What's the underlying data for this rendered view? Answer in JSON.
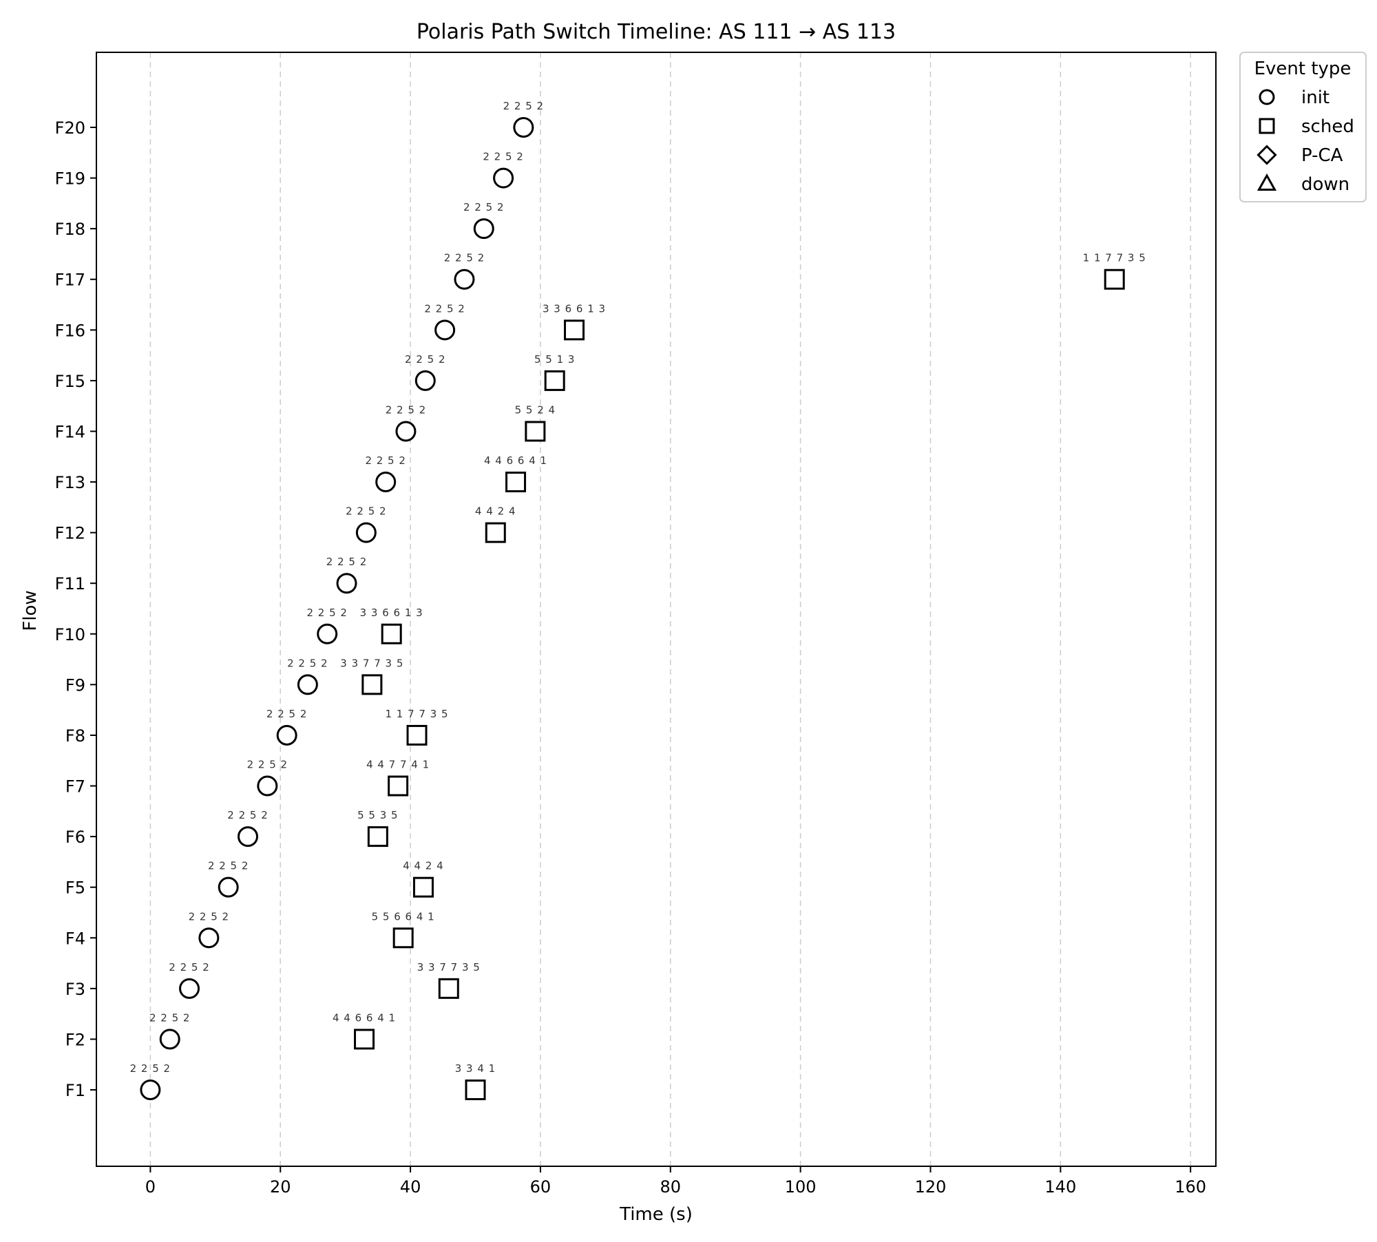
{
  "chart_data": {
    "type": "scatter",
    "title": "Polaris Path Switch Timeline: AS 111 → AS 113",
    "xlabel": "Time (s)",
    "ylabel": "Flow",
    "xlim": [
      -8.3,
      163.9
    ],
    "xticks": [
      0,
      20,
      40,
      60,
      80,
      100,
      120,
      140,
      160
    ],
    "grid": "vertical-dashed",
    "legend_title": "Event type",
    "legend_position": "outside-top-right",
    "legend_entries": [
      {
        "name": "init",
        "marker": "circle"
      },
      {
        "name": "sched",
        "marker": "square"
      },
      {
        "name": "P-CA",
        "marker": "diamond"
      },
      {
        "name": "down",
        "marker": "triangle"
      }
    ],
    "flows": [
      "F1",
      "F2",
      "F3",
      "F4",
      "F5",
      "F6",
      "F7",
      "F8",
      "F9",
      "F10",
      "F11",
      "F12",
      "F13",
      "F14",
      "F15",
      "F16",
      "F17",
      "F18",
      "F19",
      "F20"
    ],
    "series": [
      {
        "name": "init",
        "marker": "circle",
        "points": [
          {
            "flow": "F1",
            "x": 0,
            "label": "2 2 5 2"
          },
          {
            "flow": "F2",
            "x": 3,
            "label": "2 2 5 2"
          },
          {
            "flow": "F3",
            "x": 6,
            "label": "2 2 5 2"
          },
          {
            "flow": "F4",
            "x": 9,
            "label": "2 2 5 2"
          },
          {
            "flow": "F5",
            "x": 12,
            "label": "2 2 5 2"
          },
          {
            "flow": "F6",
            "x": 15,
            "label": "2 2 5 2"
          },
          {
            "flow": "F7",
            "x": 18,
            "label": "2 2 5 2"
          },
          {
            "flow": "F8",
            "x": 21,
            "label": "2 2 5 2"
          },
          {
            "flow": "F9",
            "x": 24.2,
            "label": "2 2 5 2"
          },
          {
            "flow": "F10",
            "x": 27.2,
            "label": "2 2 5 2"
          },
          {
            "flow": "F11",
            "x": 30.2,
            "label": "2 2 5 2"
          },
          {
            "flow": "F12",
            "x": 33.2,
            "label": "2 2 5 2"
          },
          {
            "flow": "F13",
            "x": 36.2,
            "label": "2 2 5 2"
          },
          {
            "flow": "F14",
            "x": 39.3,
            "label": "2 2 5 2"
          },
          {
            "flow": "F15",
            "x": 42.3,
            "label": "2 2 5 2"
          },
          {
            "flow": "F16",
            "x": 45.3,
            "label": "2 2 5 2"
          },
          {
            "flow": "F17",
            "x": 48.3,
            "label": "2 2 5 2"
          },
          {
            "flow": "F18",
            "x": 51.3,
            "label": "2 2 5 2"
          },
          {
            "flow": "F19",
            "x": 54.3,
            "label": "2 2 5 2"
          },
          {
            "flow": "F20",
            "x": 57.4,
            "label": "2 2 5 2"
          }
        ]
      },
      {
        "name": "sched",
        "marker": "square",
        "points": [
          {
            "flow": "F1",
            "x": 50,
            "label": "3 3 4 1"
          },
          {
            "flow": "F2",
            "x": 32.9,
            "label": "4 4 6 6 4 1"
          },
          {
            "flow": "F3",
            "x": 45.9,
            "label": "3 3 7 7 3 5"
          },
          {
            "flow": "F4",
            "x": 38.9,
            "label": "5 5 6 6 4 1"
          },
          {
            "flow": "F5",
            "x": 42,
            "label": "4 4 2 4"
          },
          {
            "flow": "F6",
            "x": 35,
            "label": "5 5 3 5"
          },
          {
            "flow": "F7",
            "x": 38.1,
            "label": "4 4 7 7 4 1"
          },
          {
            "flow": "F8",
            "x": 41,
            "label": "1 1 7 7 3 5"
          },
          {
            "flow": "F9",
            "x": 34.1,
            "label": "3 3 7 7 3 5"
          },
          {
            "flow": "F10",
            "x": 37.1,
            "label": "3 3 6 6 1 3"
          },
          {
            "flow": "F12",
            "x": 53.1,
            "label": "4 4 2 4"
          },
          {
            "flow": "F13",
            "x": 56.2,
            "label": "4 4 6 6 4 1"
          },
          {
            "flow": "F14",
            "x": 59.2,
            "label": "5 5 2 4"
          },
          {
            "flow": "F15",
            "x": 62.2,
            "label": "5 5 1 3"
          },
          {
            "flow": "F16",
            "x": 65.2,
            "label": "3 3 6 6 1 3"
          },
          {
            "flow": "F17",
            "x": 148.3,
            "label": "1 1 7 7 3 5"
          }
        ]
      }
    ]
  }
}
